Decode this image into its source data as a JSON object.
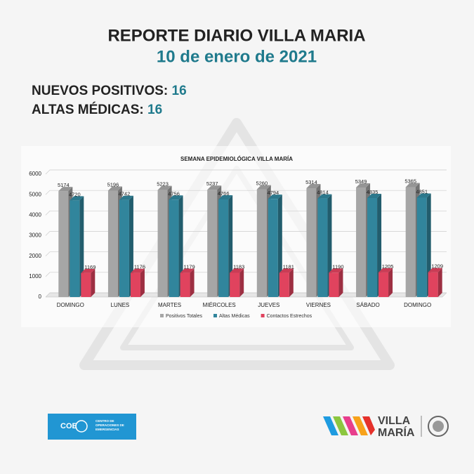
{
  "header": {
    "title": "REPORTE DIARIO VILLA MARIA",
    "date": "10 de enero de 2021"
  },
  "stats": [
    {
      "label": "NUEVOS POSITIVOS:",
      "value": "16"
    },
    {
      "label": "ALTAS MÉDICAS:",
      "value": "16"
    }
  ],
  "chart_data": {
    "type": "bar3d",
    "title": "SEMANA EPIDEMIOLÓGICA VILLA MARÍA",
    "categories": [
      "DOMINGO",
      "LUNES",
      "MARTES",
      "MIÉRCOLES",
      "JUEVES",
      "VIERNES",
      "SÁBADO",
      "DOMINGO"
    ],
    "series": [
      {
        "name": "Positivos Totales",
        "color": "#a6a6a6",
        "values": [
          5174,
          5196,
          5223,
          5237,
          5260,
          5314,
          5349,
          5365
        ]
      },
      {
        "name": "Altas Médicas",
        "color": "#31859c",
        "values": [
          4720,
          4742,
          4756,
          4766,
          4794,
          4814,
          4835,
          4851
        ]
      },
      {
        "name": "Contactos Estrechos",
        "color": "#e0435e",
        "values": [
          1169,
          1176,
          1179,
          1183,
          1181,
          1190,
          1205,
          1209
        ]
      }
    ],
    "ylim": [
      0,
      6000
    ],
    "yticks": [
      0,
      1000,
      2000,
      3000,
      4000,
      5000,
      6000
    ],
    "grid": true,
    "legend": "bottom"
  },
  "footer": {
    "coe": "COE",
    "coe_lines": [
      "CENTRO DE",
      "OPERACIONES DE",
      "EMERGENCIAS"
    ],
    "brand_lines": [
      "VILLA",
      "MARÍA"
    ]
  }
}
